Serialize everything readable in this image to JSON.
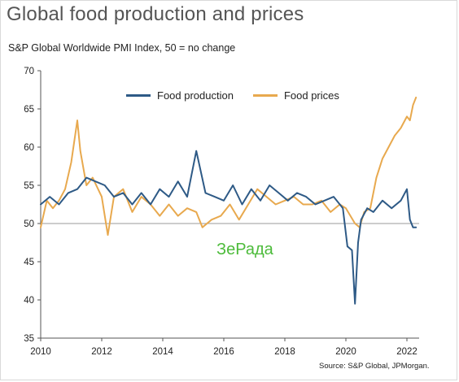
{
  "title": "Global food production and prices",
  "chart_data": {
    "type": "line",
    "title": "Global food production and prices",
    "subtitle": "S&P Global Worldwide PMI Index, 50 =  no change",
    "source": "Source: S&P Global, JPMorgan.",
    "xlabel": "",
    "ylabel": "",
    "xlim": [
      2010,
      2022.4
    ],
    "ylim": [
      35,
      70
    ],
    "x_ticks": [
      2010,
      2012,
      2014,
      2016,
      2018,
      2020,
      2022
    ],
    "y_ticks": [
      35,
      40,
      45,
      50,
      55,
      60,
      65,
      70
    ],
    "reference_line": 50,
    "grid": false,
    "legend_position": "top-center",
    "series": [
      {
        "name": "Food production",
        "color": "#2e5a86",
        "x": [
          2010.0,
          2010.3,
          2010.6,
          2010.9,
          2011.2,
          2011.5,
          2011.8,
          2012.1,
          2012.4,
          2012.7,
          2013.0,
          2013.3,
          2013.6,
          2013.9,
          2014.2,
          2014.5,
          2014.8,
          2015.1,
          2015.4,
          2015.7,
          2016.0,
          2016.3,
          2016.6,
          2016.9,
          2017.2,
          2017.5,
          2017.8,
          2018.1,
          2018.4,
          2018.7,
          2019.0,
          2019.3,
          2019.6,
          2019.9,
          2020.05,
          2020.2,
          2020.3,
          2020.4,
          2020.5,
          2020.7,
          2020.9,
          2021.2,
          2021.5,
          2021.8,
          2022.0,
          2022.1,
          2022.2,
          2022.3
        ],
        "values": [
          52.5,
          53.5,
          52.5,
          54.0,
          54.5,
          56.0,
          55.5,
          55.0,
          53.5,
          54.0,
          52.5,
          54.0,
          52.5,
          54.5,
          53.5,
          55.5,
          53.5,
          59.5,
          54.0,
          53.5,
          53.0,
          55.0,
          52.5,
          54.5,
          53.0,
          55.0,
          54.0,
          53.0,
          54.0,
          53.5,
          52.5,
          53.0,
          53.5,
          52.0,
          47.0,
          46.5,
          39.5,
          47.5,
          50.5,
          52.0,
          51.5,
          53.0,
          52.0,
          53.0,
          54.5,
          50.5,
          49.5,
          49.5
        ]
      },
      {
        "name": "Food prices",
        "color": "#e8a94e",
        "x": [
          2010.0,
          2010.2,
          2010.4,
          2010.6,
          2010.8,
          2011.0,
          2011.2,
          2011.3,
          2011.5,
          2011.7,
          2012.0,
          2012.2,
          2012.4,
          2012.7,
          2013.0,
          2013.3,
          2013.6,
          2013.9,
          2014.2,
          2014.5,
          2014.8,
          2015.1,
          2015.3,
          2015.6,
          2015.9,
          2016.2,
          2016.5,
          2016.8,
          2017.1,
          2017.4,
          2017.7,
          2018.0,
          2018.3,
          2018.6,
          2018.9,
          2019.2,
          2019.5,
          2019.8,
          2020.0,
          2020.15,
          2020.3,
          2020.45,
          2020.6,
          2020.8,
          2021.0,
          2021.2,
          2021.4,
          2021.6,
          2021.8,
          2022.0,
          2022.1,
          2022.2,
          2022.3
        ],
        "values": [
          49.5,
          53.0,
          52.0,
          53.0,
          54.5,
          58.0,
          63.5,
          59.5,
          55.0,
          56.0,
          53.5,
          48.5,
          53.5,
          54.5,
          51.5,
          53.5,
          52.5,
          51.0,
          52.5,
          51.0,
          52.0,
          51.5,
          49.5,
          50.5,
          51.0,
          52.5,
          50.5,
          52.5,
          54.5,
          53.5,
          52.5,
          53.0,
          53.5,
          52.5,
          52.5,
          53.0,
          51.5,
          52.5,
          52.0,
          51.0,
          50.0,
          49.5,
          51.5,
          52.0,
          56.0,
          58.5,
          60.0,
          61.5,
          62.5,
          64.0,
          63.5,
          65.5,
          66.5
        ]
      }
    ]
  },
  "watermark": "ЗеРада"
}
